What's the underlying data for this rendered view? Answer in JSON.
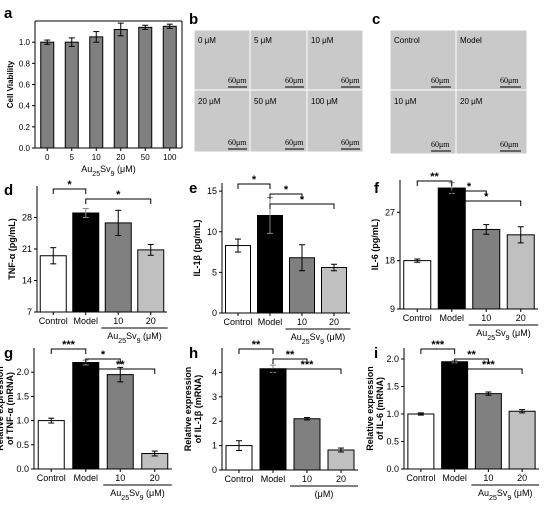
{
  "panels": {
    "a": "a",
    "b": "b",
    "c": "c",
    "d": "d",
    "e": "e",
    "f": "f",
    "g": "g",
    "h": "h",
    "i": "i"
  },
  "micrographs": {
    "b": {
      "labels": [
        "0 μM",
        "5 μM",
        "10 μM",
        "20 μM",
        "50 μM",
        "100 μM"
      ],
      "scale_bar": "60μm"
    },
    "c": {
      "labels": [
        "Control",
        "Model",
        "10 μM",
        "20 μM"
      ],
      "scale_bar": "60μm"
    }
  },
  "chart_data": [
    {
      "id": "a",
      "type": "bar",
      "categories": [
        "0",
        "5",
        "10",
        "20",
        "50",
        "100"
      ],
      "values": [
        1.0,
        1.0,
        1.05,
        1.12,
        1.14,
        1.15
      ],
      "errors": [
        0.02,
        0.04,
        0.05,
        0.06,
        0.02,
        0.02
      ],
      "colors": [
        "#808080",
        "#808080",
        "#808080",
        "#808080",
        "#808080",
        "#808080"
      ],
      "ylabel": "Cell Viability",
      "xlabel_main": "Au",
      "xlabel_sub1": "25",
      "xlabel_mid": "Sv",
      "xlabel_sub2": "9",
      "xlabel_end": " (μM)",
      "ylim": [
        0,
        1.2
      ],
      "yticks": [
        {
          "v": 0,
          "l": "0.0"
        },
        {
          "v": 0.2,
          "l": "0.2"
        },
        {
          "v": 0.4,
          "l": "0.4"
        },
        {
          "v": 0.6,
          "l": "0.6"
        },
        {
          "v": 0.8,
          "l": "0.8"
        },
        {
          "v": 1.0,
          "l": "1.0"
        }
      ],
      "significance": []
    },
    {
      "id": "d",
      "type": "bar",
      "categories": [
        "Control",
        "Model",
        "10",
        "20"
      ],
      "values": [
        19.5,
        29.0,
        26.8,
        20.8
      ],
      "errors": [
        1.8,
        1.0,
        2.8,
        1.2
      ],
      "colors": [
        "#ffffff",
        "#000000",
        "#808080",
        "#c0c0c0"
      ],
      "ylabel": "TNF-α (pg/mL)",
      "group_label_main": "Au",
      "group_label_sub1": "25",
      "group_label_mid": "Sv",
      "group_label_sub2": "9",
      "group_label_end": " (μM)",
      "ylim": [
        7,
        35
      ],
      "yticks": [
        {
          "v": 7,
          "l": "7"
        },
        {
          "v": 14,
          "l": "14"
        },
        {
          "v": 21,
          "l": "21"
        },
        {
          "v": 28,
          "l": "28"
        }
      ],
      "significance": [
        {
          "from": 0,
          "to": 1,
          "label": "*"
        },
        {
          "from": 1,
          "to": 3,
          "label": "*"
        }
      ]
    },
    {
      "id": "e",
      "type": "bar",
      "categories": [
        "Control",
        "Model",
        "10",
        "20"
      ],
      "values": [
        8.3,
        12.0,
        6.8,
        5.6
      ],
      "errors": [
        0.8,
        2.2,
        1.6,
        0.4
      ],
      "colors": [
        "#ffffff",
        "#000000",
        "#808080",
        "#c0c0c0"
      ],
      "ylabel": "IL-1β (pg/mL)",
      "group_label_main": "Au",
      "group_label_sub1": "25",
      "group_label_mid": "Sv",
      "group_label_sub2": "9",
      "group_label_end": " (μM)",
      "ylim": [
        0,
        16
      ],
      "yticks": [
        {
          "v": 0,
          "l": "0"
        },
        {
          "v": 5,
          "l": "5"
        },
        {
          "v": 10,
          "l": "10"
        },
        {
          "v": 15,
          "l": "15"
        }
      ],
      "significance": [
        {
          "from": 0,
          "to": 1,
          "label": "*"
        },
        {
          "from": 1,
          "to": 2,
          "label": "*"
        },
        {
          "from": 1,
          "to": 3,
          "label": "*"
        }
      ]
    },
    {
      "id": "f",
      "type": "bar",
      "categories": [
        "Control",
        "Model",
        "10",
        "20"
      ],
      "values": [
        18.0,
        31.5,
        23.8,
        22.8
      ],
      "errors": [
        0.3,
        1.0,
        0.9,
        1.5
      ],
      "colors": [
        "#ffffff",
        "#000000",
        "#808080",
        "#c0c0c0"
      ],
      "ylabel": "IL-6 (pg/mL)",
      "group_label_main": "Au",
      "group_label_sub1": "25",
      "group_label_mid": "Sv",
      "group_label_sub2": "9",
      "group_label_end": " (μM)",
      "ylim": [
        9,
        33
      ],
      "yticks": [
        {
          "v": 9,
          "l": "9"
        },
        {
          "v": 18,
          "l": "18"
        },
        {
          "v": 27,
          "l": "27"
        }
      ],
      "significance": [
        {
          "from": 0,
          "to": 1,
          "label": "**"
        },
        {
          "from": 1,
          "to": 2,
          "label": "*"
        },
        {
          "from": 1,
          "to": 3,
          "label": "*"
        }
      ]
    },
    {
      "id": "g",
      "type": "bar",
      "categories": [
        "Control",
        "Model",
        "10",
        "20"
      ],
      "values": [
        1.0,
        2.2,
        1.95,
        0.32
      ],
      "errors": [
        0.05,
        0.05,
        0.15,
        0.05
      ],
      "colors": [
        "#ffffff",
        "#000000",
        "#808080",
        "#c0c0c0"
      ],
      "ylabel": "Relative expression of TNF-α (mRNA)",
      "ylabel_line1": "Relative expression",
      "ylabel_line2": "of TNF-α (mRNA)",
      "group_label_main": "Au",
      "group_label_sub1": "25",
      "group_label_mid": "Sv",
      "group_label_sub2": "9",
      "group_label_end": " (μM)",
      "ylim": [
        0,
        2.5
      ],
      "yticks": [
        {
          "v": 0,
          "l": "0.0"
        },
        {
          "v": 0.5,
          "l": "0.5"
        },
        {
          "v": 1.0,
          "l": "1.0"
        },
        {
          "v": 1.5,
          "l": "1.5"
        },
        {
          "v": 2.0,
          "l": "2.0"
        }
      ],
      "significance": [
        {
          "from": 0,
          "to": 1,
          "label": "***"
        },
        {
          "from": 1,
          "to": 2,
          "label": "*"
        },
        {
          "from": 1,
          "to": 3,
          "label": "**"
        }
      ]
    },
    {
      "id": "h",
      "type": "bar",
      "categories": [
        "Control",
        "Model",
        "10",
        "20"
      ],
      "values": [
        1.0,
        4.15,
        2.1,
        0.82
      ],
      "errors": [
        0.2,
        0.15,
        0.05,
        0.08
      ],
      "colors": [
        "#ffffff",
        "#000000",
        "#808080",
        "#c0c0c0"
      ],
      "ylabel": "Relative expression of IL-1β (mRNA)",
      "ylabel_line1": "Relative expression",
      "ylabel_line2": "of IL-1β (mRNA)",
      "group_label_main": "",
      "group_label_sub1": "",
      "group_label_mid": "",
      "group_label_sub2": "",
      "group_label_end": "(μM)",
      "ylim": [
        0,
        5
      ],
      "yticks": [
        {
          "v": 0,
          "l": "0"
        },
        {
          "v": 1,
          "l": "1"
        },
        {
          "v": 2,
          "l": "2"
        },
        {
          "v": 3,
          "l": "3"
        },
        {
          "v": 4,
          "l": "4"
        }
      ],
      "significance": [
        {
          "from": 0,
          "to": 1,
          "label": "**"
        },
        {
          "from": 1,
          "to": 2,
          "label": "**"
        },
        {
          "from": 1,
          "to": 3,
          "label": "***"
        }
      ]
    },
    {
      "id": "i",
      "type": "bar",
      "categories": [
        "Control",
        "Model",
        "10",
        "20"
      ],
      "values": [
        1.0,
        1.95,
        1.37,
        1.05
      ],
      "errors": [
        0.02,
        0.02,
        0.03,
        0.03
      ],
      "colors": [
        "#ffffff",
        "#000000",
        "#808080",
        "#c0c0c0"
      ],
      "ylabel": "Relative expression of IL-6 (mRNA)",
      "ylabel_line1": "Relative expression",
      "ylabel_line2": "of IL-6 (mRNA)",
      "group_label_main": "Au",
      "group_label_sub1": "25",
      "group_label_mid": "Sv",
      "group_label_sub2": "9",
      "group_label_end": " (μM)",
      "ylim": [
        0,
        2.2
      ],
      "yticks": [
        {
          "v": 0,
          "l": "0.0"
        },
        {
          "v": 0.5,
          "l": "0.5"
        },
        {
          "v": 1.0,
          "l": "1.0"
        },
        {
          "v": 1.5,
          "l": "1.5"
        },
        {
          "v": 2.0,
          "l": "2.0"
        }
      ],
      "significance": [
        {
          "from": 0,
          "to": 1,
          "label": "***"
        },
        {
          "from": 1,
          "to": 2,
          "label": "**"
        },
        {
          "from": 1,
          "to": 3,
          "label": "***"
        }
      ]
    }
  ]
}
